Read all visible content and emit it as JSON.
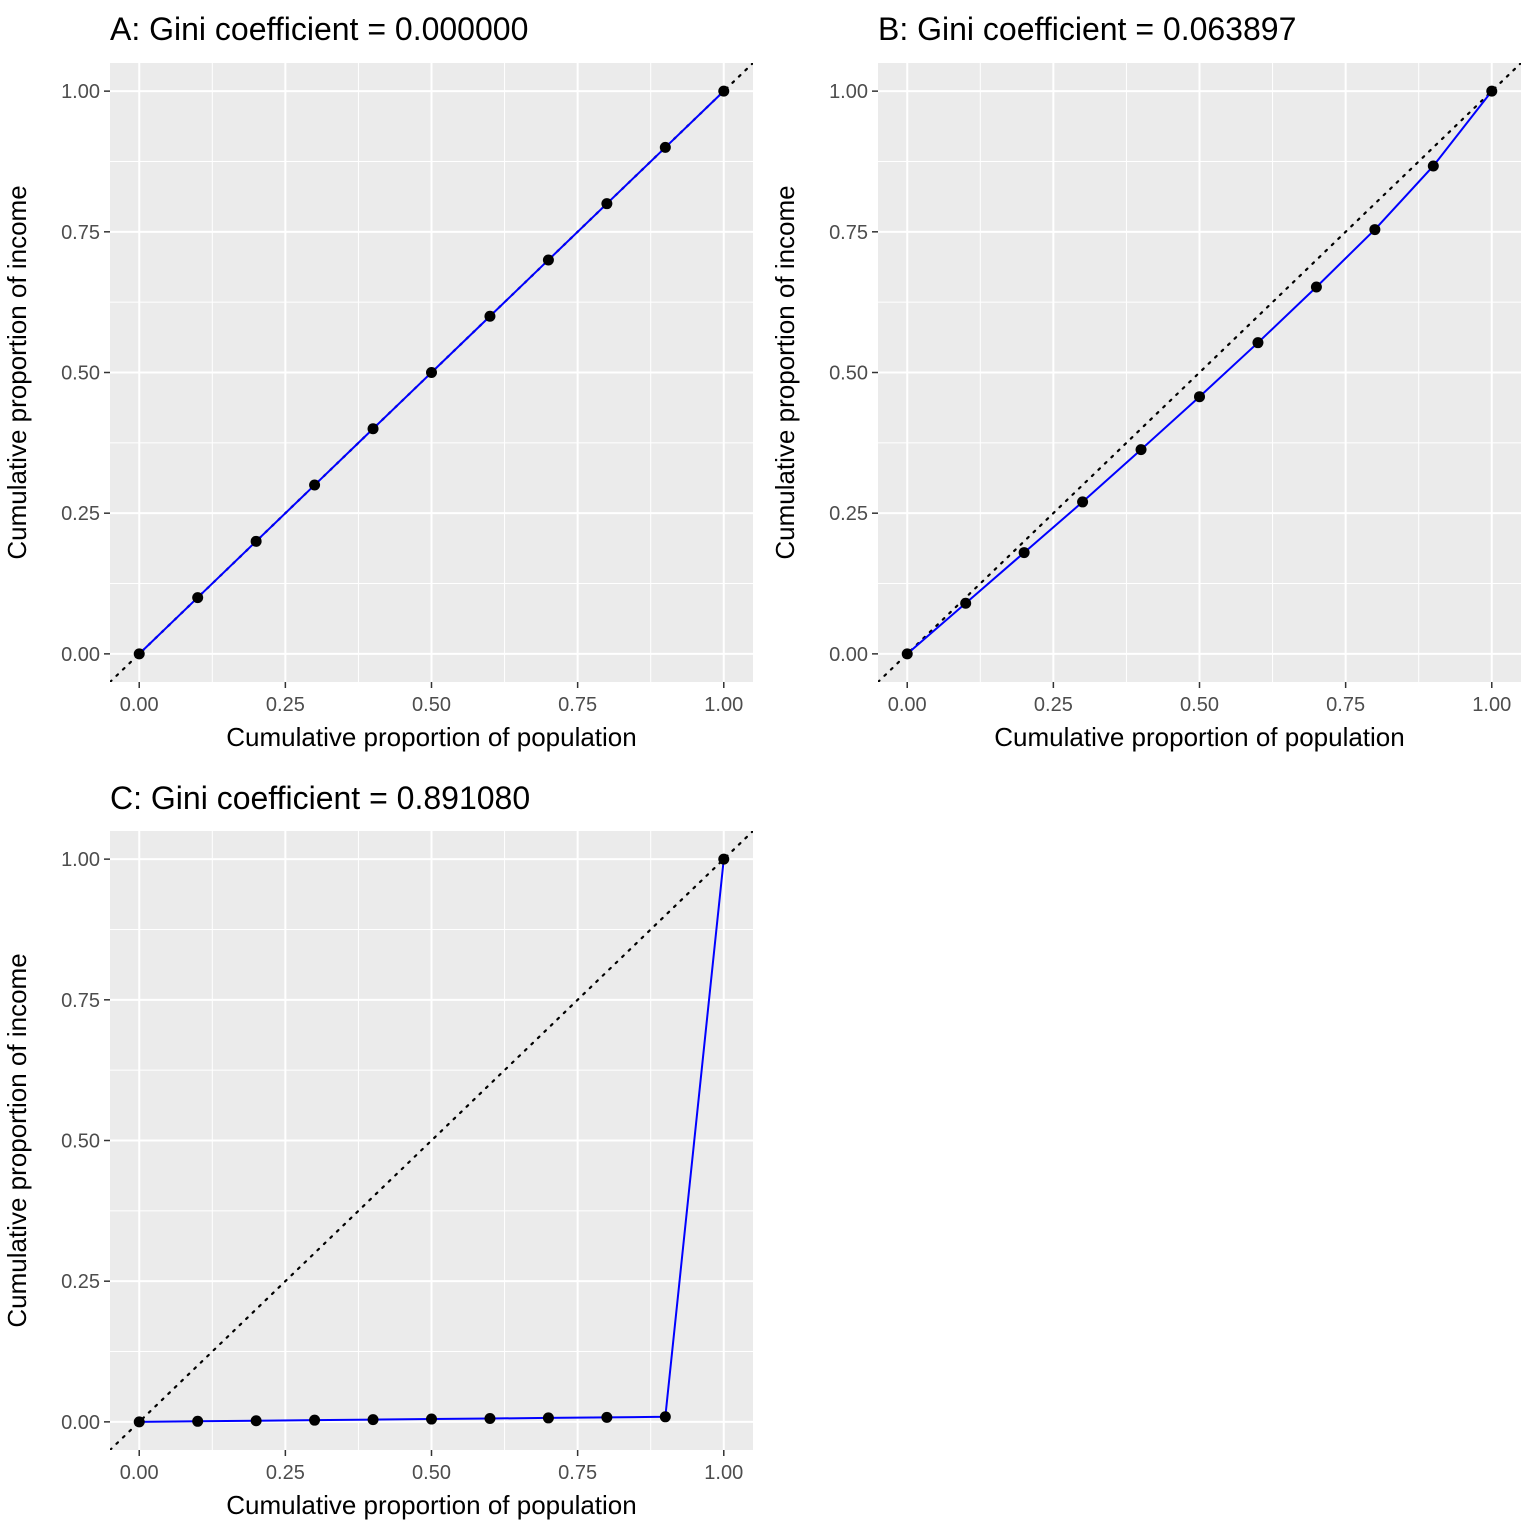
{
  "chart_data": [
    {
      "type": "line",
      "title": "A: Gini coefficient = 0.000000",
      "xlabel": "Cumulative proportion of population",
      "ylabel": "Cumulative proportion of income",
      "xlim": [
        -0.05,
        1.05
      ],
      "ylim": [
        -0.05,
        1.05
      ],
      "grid": true,
      "x_ticks": [
        "0.00",
        "0.25",
        "0.50",
        "0.75",
        "1.00"
      ],
      "y_ticks": [
        "0.00",
        "0.25",
        "0.50",
        "0.75",
        "1.00"
      ],
      "reference_line": {
        "style": "dotted",
        "from": [
          0,
          0
        ],
        "to": [
          1,
          1
        ],
        "color": "#000000"
      },
      "series": [
        {
          "name": "Lorenz curve",
          "color": "#0000ff",
          "point_color": "#000000",
          "x": [
            0,
            0.1,
            0.2,
            0.3,
            0.4,
            0.5,
            0.6,
            0.7,
            0.8,
            0.9,
            1.0
          ],
          "y": [
            0,
            0.1,
            0.2,
            0.3,
            0.4,
            0.5,
            0.6,
            0.7,
            0.8,
            0.9,
            1.0
          ]
        }
      ]
    },
    {
      "type": "line",
      "title": "B: Gini coefficient = 0.063897",
      "xlabel": "Cumulative proportion of population",
      "ylabel": "Cumulative proportion of income",
      "xlim": [
        -0.05,
        1.05
      ],
      "ylim": [
        -0.05,
        1.05
      ],
      "grid": true,
      "x_ticks": [
        "0.00",
        "0.25",
        "0.50",
        "0.75",
        "1.00"
      ],
      "y_ticks": [
        "0.00",
        "0.25",
        "0.50",
        "0.75",
        "1.00"
      ],
      "reference_line": {
        "style": "dotted",
        "from": [
          0,
          0
        ],
        "to": [
          1,
          1
        ],
        "color": "#000000"
      },
      "series": [
        {
          "name": "Lorenz curve",
          "color": "#0000ff",
          "point_color": "#000000",
          "x": [
            0,
            0.1,
            0.2,
            0.3,
            0.4,
            0.5,
            0.6,
            0.7,
            0.8,
            0.9,
            1.0
          ],
          "y": [
            0,
            0.09,
            0.18,
            0.27,
            0.363,
            0.457,
            0.553,
            0.652,
            0.754,
            0.867,
            1.0
          ]
        }
      ]
    },
    {
      "type": "line",
      "title": "C: Gini coefficient = 0.891080",
      "xlabel": "Cumulative proportion of population",
      "ylabel": "Cumulative proportion of income",
      "xlim": [
        -0.05,
        1.05
      ],
      "ylim": [
        -0.05,
        1.05
      ],
      "grid": true,
      "x_ticks": [
        "0.00",
        "0.25",
        "0.50",
        "0.75",
        "1.00"
      ],
      "y_ticks": [
        "0.00",
        "0.25",
        "0.50",
        "0.75",
        "1.00"
      ],
      "reference_line": {
        "style": "dotted",
        "from": [
          0,
          0
        ],
        "to": [
          1,
          1
        ],
        "color": "#000000"
      },
      "series": [
        {
          "name": "Lorenz curve",
          "color": "#0000ff",
          "point_color": "#000000",
          "x": [
            0,
            0.1,
            0.2,
            0.3,
            0.4,
            0.5,
            0.6,
            0.7,
            0.8,
            0.9,
            1.0
          ],
          "y": [
            0,
            0.001,
            0.002,
            0.003,
            0.004,
            0.005,
            0.006,
            0.007,
            0.008,
            0.009,
            1.0
          ]
        }
      ]
    }
  ],
  "colors": {
    "panel_background": "#ebebeb",
    "grid": "#ffffff",
    "tick_text": "#4d4d4d",
    "tick_mark": "#333333",
    "curve": "#0000ff",
    "points": "#000000"
  }
}
